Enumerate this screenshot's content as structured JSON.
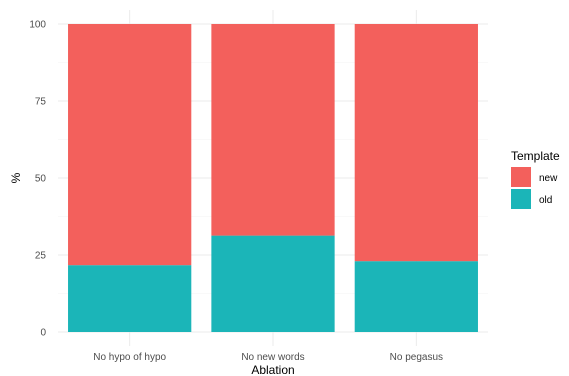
{
  "chart_data": {
    "type": "bar",
    "stacked": true,
    "title": "",
    "xlabel": "Ablation",
    "ylabel": "%",
    "categories": [
      "No hypo of hypo",
      "No new words",
      "No pegasus"
    ],
    "series": [
      {
        "name": "old",
        "color": "#1bb5b8",
        "values": [
          21.7,
          31.3,
          23.0
        ]
      },
      {
        "name": "new",
        "color": "#f3605c",
        "values": [
          78.3,
          68.7,
          77.0
        ]
      }
    ],
    "ylim": [
      0,
      100
    ],
    "yticks": [
      "0",
      "25",
      "50",
      "75",
      "100"
    ],
    "grid": true,
    "legend": {
      "title": "Template",
      "position": "right",
      "entries": [
        {
          "label": "new",
          "color": "#f3605c"
        },
        {
          "label": "old",
          "color": "#1bb5b8"
        }
      ]
    }
  }
}
